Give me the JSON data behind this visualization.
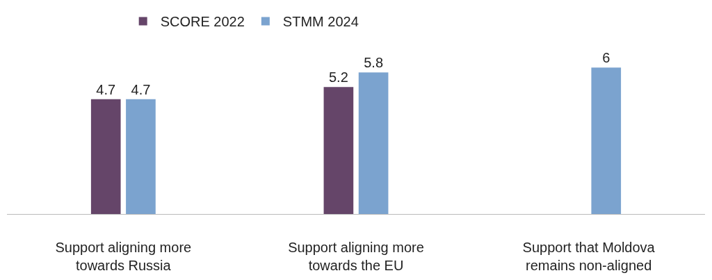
{
  "chart_data": {
    "type": "bar",
    "categories": [
      "Support aligning more towards Russia",
      "Support aligning more towards the EU",
      "Support that Moldova remains non-aligned"
    ],
    "series": [
      {
        "name": "SCORE 2022",
        "color": "#654569",
        "values": [
          4.7,
          5.2,
          null
        ]
      },
      {
        "name": "STMM 2024",
        "color": "#7ba3cf",
        "values": [
          4.7,
          5.8,
          6
        ]
      }
    ],
    "data_labels": true,
    "legend": "top left"
  }
}
